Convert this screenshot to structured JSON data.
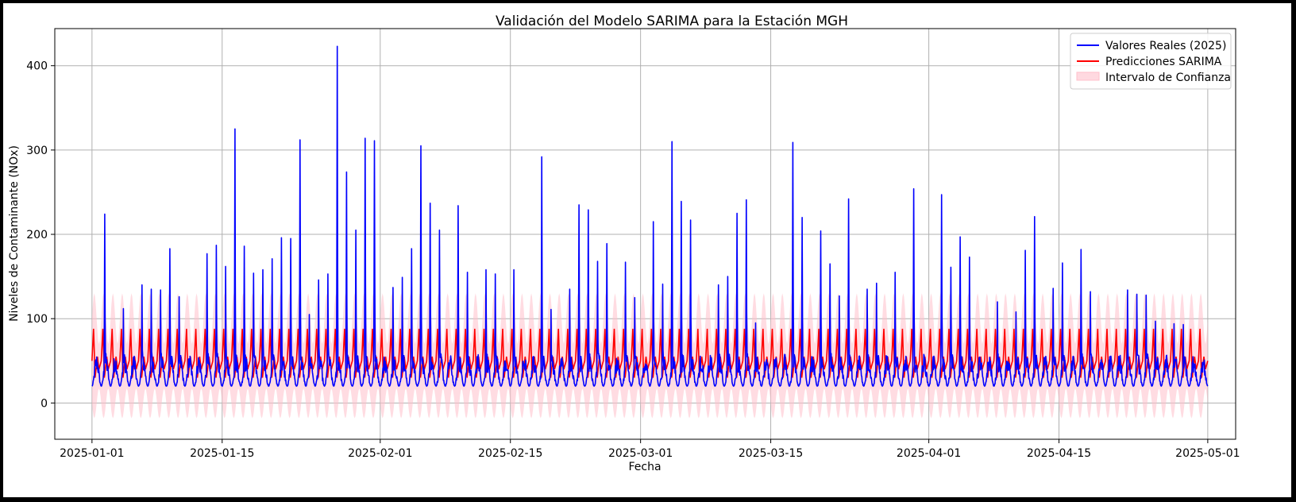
{
  "chart_data": {
    "type": "line",
    "title": "Validación del Modelo SARIMA para la Estación MGH",
    "xlabel": "Fecha",
    "ylabel": "Niveles de Contaminante (NOx)",
    "x_range": [
      "2024-12-28",
      "2025-05-04"
    ],
    "ylim": [
      -43,
      444
    ],
    "grid": true,
    "legend_position": "top-right",
    "x_ticks": [
      "2025-01-01",
      "2025-01-15",
      "2025-02-01",
      "2025-02-15",
      "2025-03-01",
      "2025-03-15",
      "2025-04-01",
      "2025-04-15",
      "2025-05-01"
    ],
    "y_ticks": [
      0,
      100,
      200,
      300,
      400
    ],
    "series": [
      {
        "name": "Valores Reales (2025)",
        "color": "#0000ff",
        "style": "line",
        "start": "2025-01-01",
        "end": "2025-05-01",
        "hourly_baseline": [
          20,
          60
        ],
        "peaks": [
          [
            "2025-01-02",
            224
          ],
          [
            "2025-01-04",
            112
          ],
          [
            "2025-01-06",
            140
          ],
          [
            "2025-01-07",
            135
          ],
          [
            "2025-01-08",
            134
          ],
          [
            "2025-01-09",
            183
          ],
          [
            "2025-01-10",
            126
          ],
          [
            "2025-01-13",
            177
          ],
          [
            "2025-01-14",
            187
          ],
          [
            "2025-01-15",
            162
          ],
          [
            "2025-01-16",
            325
          ],
          [
            "2025-01-17",
            186
          ],
          [
            "2025-01-18",
            154
          ],
          [
            "2025-01-19",
            158
          ],
          [
            "2025-01-20",
            171
          ],
          [
            "2025-01-21",
            196
          ],
          [
            "2025-01-22",
            195
          ],
          [
            "2025-01-23",
            312
          ],
          [
            "2025-01-24",
            105
          ],
          [
            "2025-01-25",
            146
          ],
          [
            "2025-01-26",
            153
          ],
          [
            "2025-01-27",
            423
          ],
          [
            "2025-01-28",
            274
          ],
          [
            "2025-01-29",
            205
          ],
          [
            "2025-01-30",
            314
          ],
          [
            "2025-01-31",
            311
          ],
          [
            "2025-02-02",
            137
          ],
          [
            "2025-02-03",
            149
          ],
          [
            "2025-02-04",
            183
          ],
          [
            "2025-02-05",
            305
          ],
          [
            "2025-02-06",
            237
          ],
          [
            "2025-02-07",
            205
          ],
          [
            "2025-02-09",
            234
          ],
          [
            "2025-02-10",
            155
          ],
          [
            "2025-02-12",
            158
          ],
          [
            "2025-02-13",
            153
          ],
          [
            "2025-02-15",
            158
          ],
          [
            "2025-02-18",
            292
          ],
          [
            "2025-02-19",
            111
          ],
          [
            "2025-02-21",
            135
          ],
          [
            "2025-02-22",
            235
          ],
          [
            "2025-02-23",
            229
          ],
          [
            "2025-02-24",
            168
          ],
          [
            "2025-02-25",
            189
          ],
          [
            "2025-02-27",
            167
          ],
          [
            "2025-02-28",
            125
          ],
          [
            "2025-03-02",
            215
          ],
          [
            "2025-03-03",
            141
          ],
          [
            "2025-03-04",
            310
          ],
          [
            "2025-03-05",
            239
          ],
          [
            "2025-03-06",
            217
          ],
          [
            "2025-03-09",
            140
          ],
          [
            "2025-03-10",
            150
          ],
          [
            "2025-03-11",
            225
          ],
          [
            "2025-03-12",
            241
          ],
          [
            "2025-03-13",
            95
          ],
          [
            "2025-03-17",
            309
          ],
          [
            "2025-03-18",
            220
          ],
          [
            "2025-03-20",
            204
          ],
          [
            "2025-03-21",
            165
          ],
          [
            "2025-03-22",
            127
          ],
          [
            "2025-03-23",
            242
          ],
          [
            "2025-03-25",
            135
          ],
          [
            "2025-03-26",
            142
          ],
          [
            "2025-03-28",
            155
          ],
          [
            "2025-03-30",
            254
          ],
          [
            "2025-04-02",
            247
          ],
          [
            "2025-04-03",
            161
          ],
          [
            "2025-04-04",
            197
          ],
          [
            "2025-04-05",
            173
          ],
          [
            "2025-04-08",
            120
          ],
          [
            "2025-04-10",
            108
          ],
          [
            "2025-04-11",
            181
          ],
          [
            "2025-04-12",
            221
          ],
          [
            "2025-04-14",
            136
          ],
          [
            "2025-04-15",
            166
          ],
          [
            "2025-04-17",
            182
          ],
          [
            "2025-04-18",
            132
          ],
          [
            "2025-04-22",
            134
          ],
          [
            "2025-04-23",
            129
          ],
          [
            "2025-04-24",
            128
          ],
          [
            "2025-04-25",
            97
          ],
          [
            "2025-04-27",
            94
          ],
          [
            "2025-04-28",
            93
          ]
        ]
      },
      {
        "name": "Predicciones SARIMA",
        "color": "#ff0000",
        "style": "line",
        "start": "2025-01-01",
        "end": "2025-05-01",
        "period_hours": 24,
        "range": [
          20,
          88
        ]
      },
      {
        "name": "Intervalo de Confianza",
        "color": "#ffc0cb",
        "style": "band",
        "start": "2025-01-01",
        "end": "2025-05-01",
        "period_hours": 24,
        "range": [
          -18,
          130
        ]
      }
    ]
  }
}
